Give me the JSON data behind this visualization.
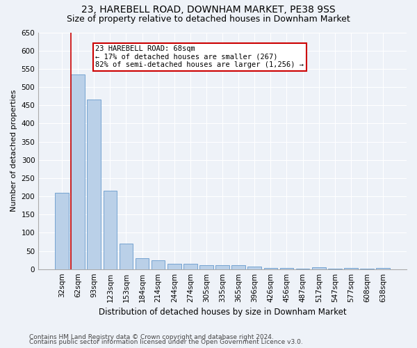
{
  "title": "23, HAREBELL ROAD, DOWNHAM MARKET, PE38 9SS",
  "subtitle": "Size of property relative to detached houses in Downham Market",
  "xlabel": "Distribution of detached houses by size in Downham Market",
  "ylabel": "Number of detached properties",
  "categories": [
    "32sqm",
    "62sqm",
    "93sqm",
    "123sqm",
    "153sqm",
    "184sqm",
    "214sqm",
    "244sqm",
    "274sqm",
    "305sqm",
    "335sqm",
    "365sqm",
    "396sqm",
    "426sqm",
    "456sqm",
    "487sqm",
    "517sqm",
    "547sqm",
    "577sqm",
    "608sqm",
    "638sqm"
  ],
  "values": [
    210,
    535,
    465,
    215,
    70,
    30,
    25,
    15,
    15,
    10,
    10,
    10,
    7,
    3,
    3,
    2,
    5,
    2,
    3,
    2,
    3
  ],
  "bar_color": "#bad0e8",
  "bar_edge_color": "#6699cc",
  "background_color": "#eef2f8",
  "grid_color": "#ffffff",
  "property_line_index": 1,
  "annotation_line1": "23 HAREBELL ROAD: 68sqm",
  "annotation_line2": "← 17% of detached houses are smaller (267)",
  "annotation_line3": "82% of semi-detached houses are larger (1,256) →",
  "annotation_box_color": "#ffffff",
  "annotation_box_edge_color": "#cc0000",
  "footnote1": "Contains HM Land Registry data © Crown copyright and database right 2024.",
  "footnote2": "Contains public sector information licensed under the Open Government Licence v3.0.",
  "ylim_max": 650,
  "yticks": [
    0,
    50,
    100,
    150,
    200,
    250,
    300,
    350,
    400,
    450,
    500,
    550,
    600,
    650
  ],
  "title_fontsize": 10,
  "subtitle_fontsize": 9,
  "xlabel_fontsize": 8.5,
  "ylabel_fontsize": 8,
  "tick_fontsize": 7.5,
  "annotation_fontsize": 7.5,
  "footnote_fontsize": 6.5
}
